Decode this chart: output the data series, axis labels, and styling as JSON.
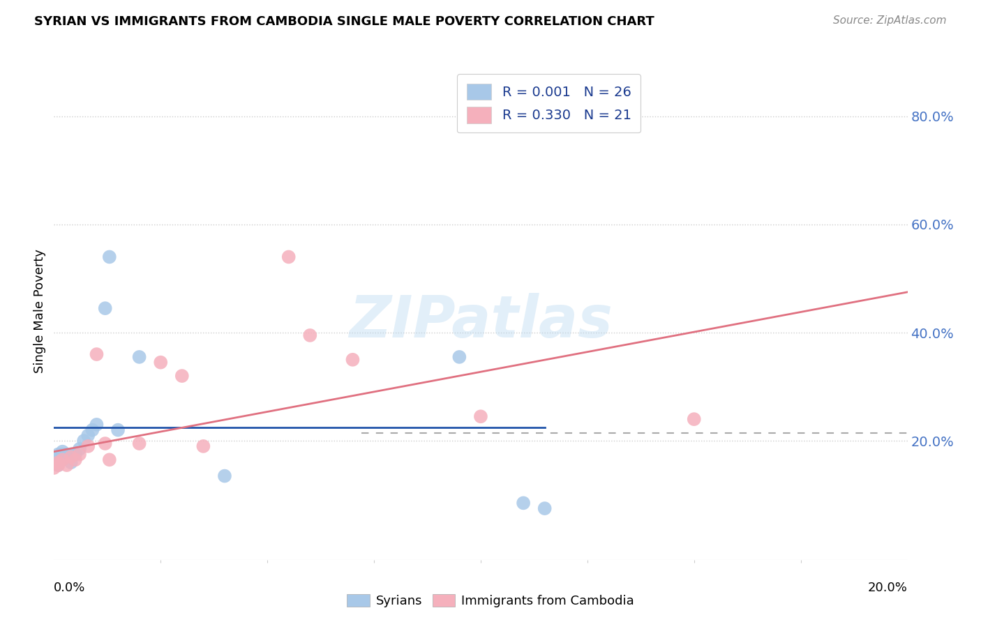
{
  "title": "SYRIAN VS IMMIGRANTS FROM CAMBODIA SINGLE MALE POVERTY CORRELATION CHART",
  "source": "Source: ZipAtlas.com",
  "ylabel": "Single Male Poverty",
  "xlim": [
    0.0,
    0.2
  ],
  "ylim": [
    -0.02,
    0.9
  ],
  "yticks": [
    0.2,
    0.4,
    0.6,
    0.8
  ],
  "ytick_labels": [
    "20.0%",
    "40.0%",
    "60.0%",
    "80.0%"
  ],
  "background_color": "#ffffff",
  "syrians_color": "#a8c8e8",
  "cambodia_color": "#f5b0bc",
  "trend_syrian_color": "#2255aa",
  "trend_cambodia_color": "#e07080",
  "grid_color": "#cccccc",
  "syrians_x": [
    0.0,
    0.001,
    0.001,
    0.001,
    0.001,
    0.002,
    0.002,
    0.002,
    0.003,
    0.003,
    0.004,
    0.004,
    0.005,
    0.006,
    0.007,
    0.008,
    0.009,
    0.01,
    0.012,
    0.013,
    0.015,
    0.02,
    0.04,
    0.095,
    0.11,
    0.115
  ],
  "syrians_y": [
    0.16,
    0.165,
    0.17,
    0.155,
    0.175,
    0.165,
    0.175,
    0.18,
    0.17,
    0.175,
    0.16,
    0.175,
    0.175,
    0.185,
    0.2,
    0.21,
    0.22,
    0.23,
    0.445,
    0.54,
    0.22,
    0.355,
    0.135,
    0.355,
    0.085,
    0.075
  ],
  "cambodia_x": [
    0.0,
    0.001,
    0.001,
    0.002,
    0.003,
    0.004,
    0.005,
    0.006,
    0.008,
    0.01,
    0.012,
    0.013,
    0.02,
    0.025,
    0.03,
    0.035,
    0.055,
    0.06,
    0.07,
    0.1,
    0.15
  ],
  "cambodia_y": [
    0.15,
    0.16,
    0.155,
    0.165,
    0.155,
    0.17,
    0.165,
    0.175,
    0.19,
    0.36,
    0.195,
    0.165,
    0.195,
    0.345,
    0.32,
    0.19,
    0.54,
    0.395,
    0.35,
    0.245,
    0.24
  ],
  "syrian_trend_x": [
    0.0,
    0.115
  ],
  "syrian_trend_y": [
    0.225,
    0.225
  ],
  "cambodia_trend_x": [
    0.0,
    0.2
  ],
  "cambodia_trend_y": [
    0.18,
    0.475
  ],
  "dashed_line_x": [
    0.072,
    0.2
  ],
  "dashed_line_y": [
    0.215,
    0.215
  ]
}
